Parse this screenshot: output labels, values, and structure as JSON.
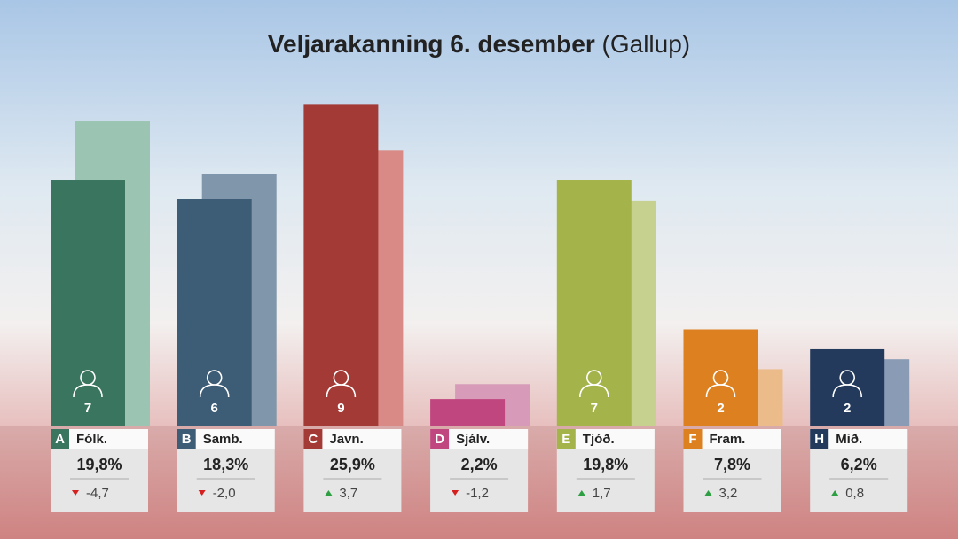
{
  "chart_data": {
    "type": "bar",
    "title": "Veljarakanning 6. desember",
    "subtitle": "(Gallup)",
    "letters": [
      "A",
      "B",
      "C",
      "D",
      "E",
      "F",
      "H"
    ],
    "categories": [
      "Fólk.",
      "Samb.",
      "Javn.",
      "Sjálv.",
      "Tjóð.",
      "Fram.",
      "Mið."
    ],
    "values": [
      19.8,
      18.3,
      25.9,
      2.2,
      19.8,
      7.8,
      6.2
    ],
    "value_labels": [
      "19,8%",
      "18,3%",
      "25,9%",
      "2,2%",
      "19,8%",
      "7,8%",
      "6,2%"
    ],
    "previous": [
      24.5,
      20.3,
      22.2,
      3.4,
      18.1,
      4.6,
      5.4
    ],
    "changes": [
      -4.7,
      -2.0,
      3.7,
      -1.2,
      1.7,
      3.2,
      0.8
    ],
    "change_labels": [
      "-4,7",
      "-2,0",
      "3,7",
      "-1,2",
      "1,7",
      "3,2",
      "0,8"
    ],
    "seats": [
      7,
      6,
      9,
      null,
      7,
      2,
      2
    ],
    "colors": [
      "#3a7560",
      "#3d5c75",
      "#a33a35",
      "#c0467f",
      "#a5b44a",
      "#dc8020",
      "#233a5c"
    ],
    "previous_colors": [
      "#9bc4b2",
      "#8096aa",
      "#d98a86",
      "#d89ab9",
      "#c6d08f",
      "#ebbc8a",
      "#8a9bb5"
    ],
    "ylim": [
      0,
      34.26
    ]
  }
}
